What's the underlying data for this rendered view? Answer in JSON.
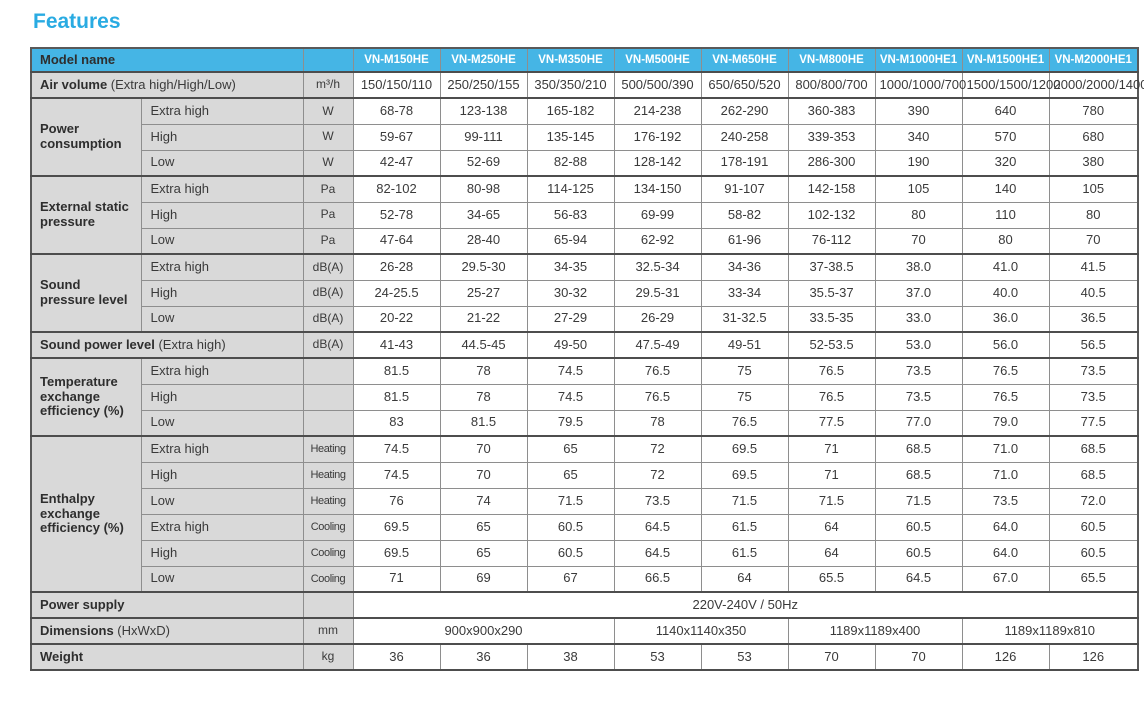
{
  "title": "Features",
  "colors": {
    "accent_title": "#29abe2",
    "header_bg": "#45b5e5",
    "label_bg": "#d9d9d9",
    "border_dark": "#4d4d4d",
    "border_light": "#8e8e8e"
  },
  "table": {
    "rows": [
      {
        "head": true,
        "end": true,
        "cells": [
          {
            "k": "mhlabel",
            "b": "Model name",
            "c": 2
          },
          {
            "k": "mhempty"
          },
          {
            "k": "mh",
            "t": "VN-M150HE"
          },
          {
            "k": "mh",
            "t": "VN-M250HE"
          },
          {
            "k": "mh",
            "t": "VN-M350HE"
          },
          {
            "k": "mh",
            "t": "VN-M500HE"
          },
          {
            "k": "mh",
            "t": "VN-M650HE"
          },
          {
            "k": "mh",
            "t": "VN-M800HE"
          },
          {
            "k": "mh",
            "t": "VN-M1000HE1"
          },
          {
            "k": "mh",
            "t": "VN-M1500HE1"
          },
          {
            "k": "mh",
            "t": "VN-M2000HE1"
          }
        ]
      },
      {
        "end": true,
        "cells": [
          {
            "k": "rowlabel",
            "b": "Air volume",
            "t": " (Extra high/High/Low)",
            "c": 2
          },
          {
            "k": "unit",
            "t": "m³/h"
          },
          {
            "t": "150/150/110"
          },
          {
            "t": "250/250/155"
          },
          {
            "t": "350/350/210"
          },
          {
            "t": "500/500/390"
          },
          {
            "t": "650/650/520"
          },
          {
            "t": "800/800/700"
          },
          {
            "t": "1000/1000/700"
          },
          {
            "t": "1500/1500/1200"
          },
          {
            "t": "2000/2000/1400"
          }
        ]
      },
      {
        "cells": [
          {
            "k": "group",
            "b": "Power consumption",
            "r": 3
          },
          {
            "k": "sub",
            "t": "Extra high"
          },
          {
            "k": "unit",
            "t": "W"
          },
          {
            "t": "68-78"
          },
          {
            "t": "123-138"
          },
          {
            "t": "165-182"
          },
          {
            "t": "214-238"
          },
          {
            "t": "262-290"
          },
          {
            "t": "360-383"
          },
          {
            "t": "390"
          },
          {
            "t": "640"
          },
          {
            "t": "780"
          }
        ]
      },
      {
        "cells": [
          {
            "k": "sub",
            "t": "High"
          },
          {
            "k": "unit",
            "t": "W"
          },
          {
            "t": "59-67"
          },
          {
            "t": "99-111"
          },
          {
            "t": "135-145"
          },
          {
            "t": "176-192"
          },
          {
            "t": "240-258"
          },
          {
            "t": "339-353"
          },
          {
            "t": "340"
          },
          {
            "t": "570"
          },
          {
            "t": "680"
          }
        ]
      },
      {
        "end": true,
        "cells": [
          {
            "k": "sub",
            "t": "Low"
          },
          {
            "k": "unit",
            "t": "W"
          },
          {
            "t": "42-47"
          },
          {
            "t": "52-69"
          },
          {
            "t": "82-88"
          },
          {
            "t": "128-142"
          },
          {
            "t": "178-191"
          },
          {
            "t": "286-300"
          },
          {
            "t": "190"
          },
          {
            "t": "320"
          },
          {
            "t": "380"
          }
        ]
      },
      {
        "cells": [
          {
            "k": "group",
            "b": "External static pressure",
            "r": 3
          },
          {
            "k": "sub",
            "t": "Extra high"
          },
          {
            "k": "unit",
            "t": "Pa"
          },
          {
            "t": "82-102"
          },
          {
            "t": "80-98"
          },
          {
            "t": "114-125"
          },
          {
            "t": "134-150"
          },
          {
            "t": "91-107"
          },
          {
            "t": "142-158"
          },
          {
            "t": "105"
          },
          {
            "t": "140"
          },
          {
            "t": "105"
          }
        ]
      },
      {
        "cells": [
          {
            "k": "sub",
            "t": "High"
          },
          {
            "k": "unit",
            "t": "Pa"
          },
          {
            "t": "52-78"
          },
          {
            "t": "34-65"
          },
          {
            "t": "56-83"
          },
          {
            "t": "69-99"
          },
          {
            "t": "58-82"
          },
          {
            "t": "102-132"
          },
          {
            "t": "80"
          },
          {
            "t": "110"
          },
          {
            "t": "80"
          }
        ]
      },
      {
        "end": true,
        "cells": [
          {
            "k": "sub",
            "t": "Low"
          },
          {
            "k": "unit",
            "t": "Pa"
          },
          {
            "t": "47-64"
          },
          {
            "t": "28-40"
          },
          {
            "t": "65-94"
          },
          {
            "t": "62-92"
          },
          {
            "t": "61-96"
          },
          {
            "t": "76-112"
          },
          {
            "t": "70"
          },
          {
            "t": "80"
          },
          {
            "t": "70"
          }
        ]
      },
      {
        "cells": [
          {
            "k": "group",
            "b": "Sound pressure level",
            "r": 3
          },
          {
            "k": "sub",
            "t": "Extra high"
          },
          {
            "k": "unit",
            "t": "dB(A)"
          },
          {
            "t": "26-28"
          },
          {
            "t": "29.5-30"
          },
          {
            "t": "34-35"
          },
          {
            "t": "32.5-34"
          },
          {
            "t": "34-36"
          },
          {
            "t": "37-38.5"
          },
          {
            "t": "38.0"
          },
          {
            "t": "41.0"
          },
          {
            "t": "41.5"
          }
        ]
      },
      {
        "cells": [
          {
            "k": "sub",
            "t": "High"
          },
          {
            "k": "unit",
            "t": "dB(A)"
          },
          {
            "t": "24-25.5"
          },
          {
            "t": "25-27"
          },
          {
            "t": "30-32"
          },
          {
            "t": "29.5-31"
          },
          {
            "t": "33-34"
          },
          {
            "t": "35.5-37"
          },
          {
            "t": "37.0"
          },
          {
            "t": "40.0"
          },
          {
            "t": "40.5"
          }
        ]
      },
      {
        "end": true,
        "cells": [
          {
            "k": "sub",
            "t": "Low"
          },
          {
            "k": "unit",
            "t": "dB(A)"
          },
          {
            "t": "20-22"
          },
          {
            "t": "21-22"
          },
          {
            "t": "27-29"
          },
          {
            "t": "26-29"
          },
          {
            "t": "31-32.5"
          },
          {
            "t": "33.5-35"
          },
          {
            "t": "33.0"
          },
          {
            "t": "36.0"
          },
          {
            "t": "36.5"
          }
        ]
      },
      {
        "end": true,
        "cells": [
          {
            "k": "rowlabel",
            "b": "Sound power level",
            "t": " (Extra high)",
            "c": 2
          },
          {
            "k": "unit",
            "t": "dB(A)"
          },
          {
            "t": "41-43"
          },
          {
            "t": "44.5-45"
          },
          {
            "t": "49-50"
          },
          {
            "t": "47.5-49"
          },
          {
            "t": "49-51"
          },
          {
            "t": "52-53.5"
          },
          {
            "t": "53.0"
          },
          {
            "t": "56.0"
          },
          {
            "t": "56.5"
          }
        ]
      },
      {
        "cells": [
          {
            "k": "group",
            "b": "Temperature exchange efficiency (%)",
            "r": 3
          },
          {
            "k": "sub",
            "t": "Extra high"
          },
          {
            "k": "unit"
          },
          {
            "t": "81.5"
          },
          {
            "t": "78"
          },
          {
            "t": "74.5"
          },
          {
            "t": "76.5"
          },
          {
            "t": "75"
          },
          {
            "t": "76.5"
          },
          {
            "t": "73.5"
          },
          {
            "t": "76.5"
          },
          {
            "t": "73.5"
          }
        ]
      },
      {
        "cells": [
          {
            "k": "sub",
            "t": "High"
          },
          {
            "k": "unit"
          },
          {
            "t": "81.5"
          },
          {
            "t": "78"
          },
          {
            "t": "74.5"
          },
          {
            "t": "76.5"
          },
          {
            "t": "75"
          },
          {
            "t": "76.5"
          },
          {
            "t": "73.5"
          },
          {
            "t": "76.5"
          },
          {
            "t": "73.5"
          }
        ]
      },
      {
        "end": true,
        "cells": [
          {
            "k": "sub",
            "t": "Low"
          },
          {
            "k": "unit"
          },
          {
            "t": "83"
          },
          {
            "t": "81.5"
          },
          {
            "t": "79.5"
          },
          {
            "t": "78"
          },
          {
            "t": "76.5"
          },
          {
            "t": "77.5"
          },
          {
            "t": "77.0"
          },
          {
            "t": "79.0"
          },
          {
            "t": "77.5"
          }
        ]
      },
      {
        "cells": [
          {
            "k": "group",
            "b": "Enthalpy exchange efficiency (%)",
            "r": 6
          },
          {
            "k": "sub",
            "t": "Extra high"
          },
          {
            "k": "unit sm",
            "t": "Heating"
          },
          {
            "t": "74.5"
          },
          {
            "t": "70"
          },
          {
            "t": "65"
          },
          {
            "t": "72"
          },
          {
            "t": "69.5"
          },
          {
            "t": "71"
          },
          {
            "t": "68.5"
          },
          {
            "t": "71.0"
          },
          {
            "t": "68.5"
          }
        ]
      },
      {
        "cells": [
          {
            "k": "sub",
            "t": "High"
          },
          {
            "k": "unit sm",
            "t": "Heating"
          },
          {
            "t": "74.5"
          },
          {
            "t": "70"
          },
          {
            "t": "65"
          },
          {
            "t": "72"
          },
          {
            "t": "69.5"
          },
          {
            "t": "71"
          },
          {
            "t": "68.5"
          },
          {
            "t": "71.0"
          },
          {
            "t": "68.5"
          }
        ]
      },
      {
        "cells": [
          {
            "k": "sub",
            "t": "Low"
          },
          {
            "k": "unit sm",
            "t": "Heating"
          },
          {
            "t": "76"
          },
          {
            "t": "74"
          },
          {
            "t": "71.5"
          },
          {
            "t": "73.5"
          },
          {
            "t": "71.5"
          },
          {
            "t": "71.5"
          },
          {
            "t": "71.5"
          },
          {
            "t": "73.5"
          },
          {
            "t": "72.0"
          }
        ]
      },
      {
        "cells": [
          {
            "k": "sub",
            "t": "Extra high"
          },
          {
            "k": "unit sm",
            "t": "Cooling"
          },
          {
            "t": "69.5"
          },
          {
            "t": "65"
          },
          {
            "t": "60.5"
          },
          {
            "t": "64.5"
          },
          {
            "t": "61.5"
          },
          {
            "t": "64"
          },
          {
            "t": "60.5"
          },
          {
            "t": "64.0"
          },
          {
            "t": "60.5"
          }
        ]
      },
      {
        "cells": [
          {
            "k": "sub",
            "t": "High"
          },
          {
            "k": "unit sm",
            "t": "Cooling"
          },
          {
            "t": "69.5"
          },
          {
            "t": "65"
          },
          {
            "t": "60.5"
          },
          {
            "t": "64.5"
          },
          {
            "t": "61.5"
          },
          {
            "t": "64"
          },
          {
            "t": "60.5"
          },
          {
            "t": "64.0"
          },
          {
            "t": "60.5"
          }
        ]
      },
      {
        "end": true,
        "cells": [
          {
            "k": "sub",
            "t": "Low"
          },
          {
            "k": "unit sm",
            "t": "Cooling"
          },
          {
            "t": "71"
          },
          {
            "t": "69"
          },
          {
            "t": "67"
          },
          {
            "t": "66.5"
          },
          {
            "t": "64"
          },
          {
            "t": "65.5"
          },
          {
            "t": "64.5"
          },
          {
            "t": "67.0"
          },
          {
            "t": "65.5"
          }
        ]
      },
      {
        "end": true,
        "cells": [
          {
            "k": "rowlabel",
            "b": "Power supply",
            "c": 2
          },
          {
            "k": "unit"
          },
          {
            "t": "220V-240V / 50Hz",
            "c": 9
          }
        ]
      },
      {
        "end": true,
        "cells": [
          {
            "k": "rowlabel",
            "b": "Dimensions",
            "t": " (HxWxD)",
            "c": 2
          },
          {
            "k": "unit",
            "t": "mm"
          },
          {
            "t": "900x900x290",
            "c": 3
          },
          {
            "t": "1140x1140x350",
            "c": 2
          },
          {
            "t": "1189x1189x400",
            "c": 2
          },
          {
            "t": "1189x1189x810",
            "c": 2
          }
        ]
      },
      {
        "end": true,
        "cells": [
          {
            "k": "rowlabel",
            "b": "Weight",
            "c": 2
          },
          {
            "k": "unit",
            "t": "kg"
          },
          {
            "t": "36"
          },
          {
            "t": "36"
          },
          {
            "t": "38"
          },
          {
            "t": "53"
          },
          {
            "t": "53"
          },
          {
            "t": "70"
          },
          {
            "t": "70"
          },
          {
            "t": "126"
          },
          {
            "t": "126"
          }
        ]
      }
    ]
  }
}
